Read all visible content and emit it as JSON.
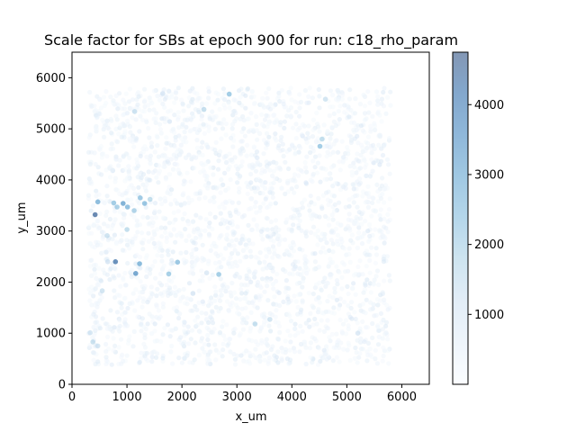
{
  "chart_data": {
    "type": "scatter",
    "title": "Scale factor for SBs at epoch 900 for run: c18_rho_param",
    "xlabel": "x_um",
    "ylabel": "y_um",
    "xlim": [
      0,
      6500
    ],
    "ylim": [
      0,
      6500
    ],
    "x_ticks": [
      0,
      1000,
      2000,
      3000,
      4000,
      5000,
      6000
    ],
    "y_ticks": [
      0,
      1000,
      2000,
      3000,
      4000,
      5000,
      6000
    ],
    "grid": false,
    "colorbar": {
      "colormap": "Blues",
      "min": 0,
      "max": 4750,
      "ticks": [
        1000,
        2000,
        3000,
        4000
      ]
    },
    "points": [
      {
        "x": 420,
        "y": 3320,
        "v": 4500
      },
      {
        "x": 790,
        "y": 2400,
        "v": 4300
      },
      {
        "x": 1160,
        "y": 2170,
        "v": 3600
      },
      {
        "x": 1230,
        "y": 2360,
        "v": 3000
      },
      {
        "x": 1920,
        "y": 2390,
        "v": 2600
      },
      {
        "x": 1760,
        "y": 2160,
        "v": 2300
      },
      {
        "x": 2670,
        "y": 2150,
        "v": 2300
      },
      {
        "x": 470,
        "y": 3570,
        "v": 2900
      },
      {
        "x": 760,
        "y": 3550,
        "v": 2400
      },
      {
        "x": 820,
        "y": 3470,
        "v": 2200
      },
      {
        "x": 930,
        "y": 3540,
        "v": 3300
      },
      {
        "x": 1010,
        "y": 3470,
        "v": 2800
      },
      {
        "x": 1130,
        "y": 3400,
        "v": 2100
      },
      {
        "x": 1240,
        "y": 3650,
        "v": 2300
      },
      {
        "x": 1320,
        "y": 3540,
        "v": 2600
      },
      {
        "x": 1420,
        "y": 3620,
        "v": 1800
      },
      {
        "x": 1000,
        "y": 3030,
        "v": 1800
      },
      {
        "x": 640,
        "y": 2910,
        "v": 1500
      },
      {
        "x": 550,
        "y": 1830,
        "v": 1400
      },
      {
        "x": 2860,
        "y": 5680,
        "v": 2400
      },
      {
        "x": 2400,
        "y": 5380,
        "v": 1700
      },
      {
        "x": 1140,
        "y": 5340,
        "v": 1500
      },
      {
        "x": 4510,
        "y": 4660,
        "v": 2400
      },
      {
        "x": 4550,
        "y": 4800,
        "v": 1800
      },
      {
        "x": 4610,
        "y": 5580,
        "v": 1400
      },
      {
        "x": 3330,
        "y": 1180,
        "v": 1700
      },
      {
        "x": 3600,
        "y": 1270,
        "v": 1400
      },
      {
        "x": 380,
        "y": 830,
        "v": 1600
      },
      {
        "x": 330,
        "y": 1010,
        "v": 1300
      },
      {
        "x": 470,
        "y": 750,
        "v": 1300
      },
      {
        "x": 1650,
        "y": 5690,
        "v": 1100
      },
      {
        "x": 2200,
        "y": 1780,
        "v": 1200
      },
      {
        "x": 2450,
        "y": 2180,
        "v": 1100
      },
      {
        "x": 650,
        "y": 2400,
        "v": 1200
      },
      {
        "x": 5200,
        "y": 1000,
        "v": 1100
      }
    ]
  }
}
